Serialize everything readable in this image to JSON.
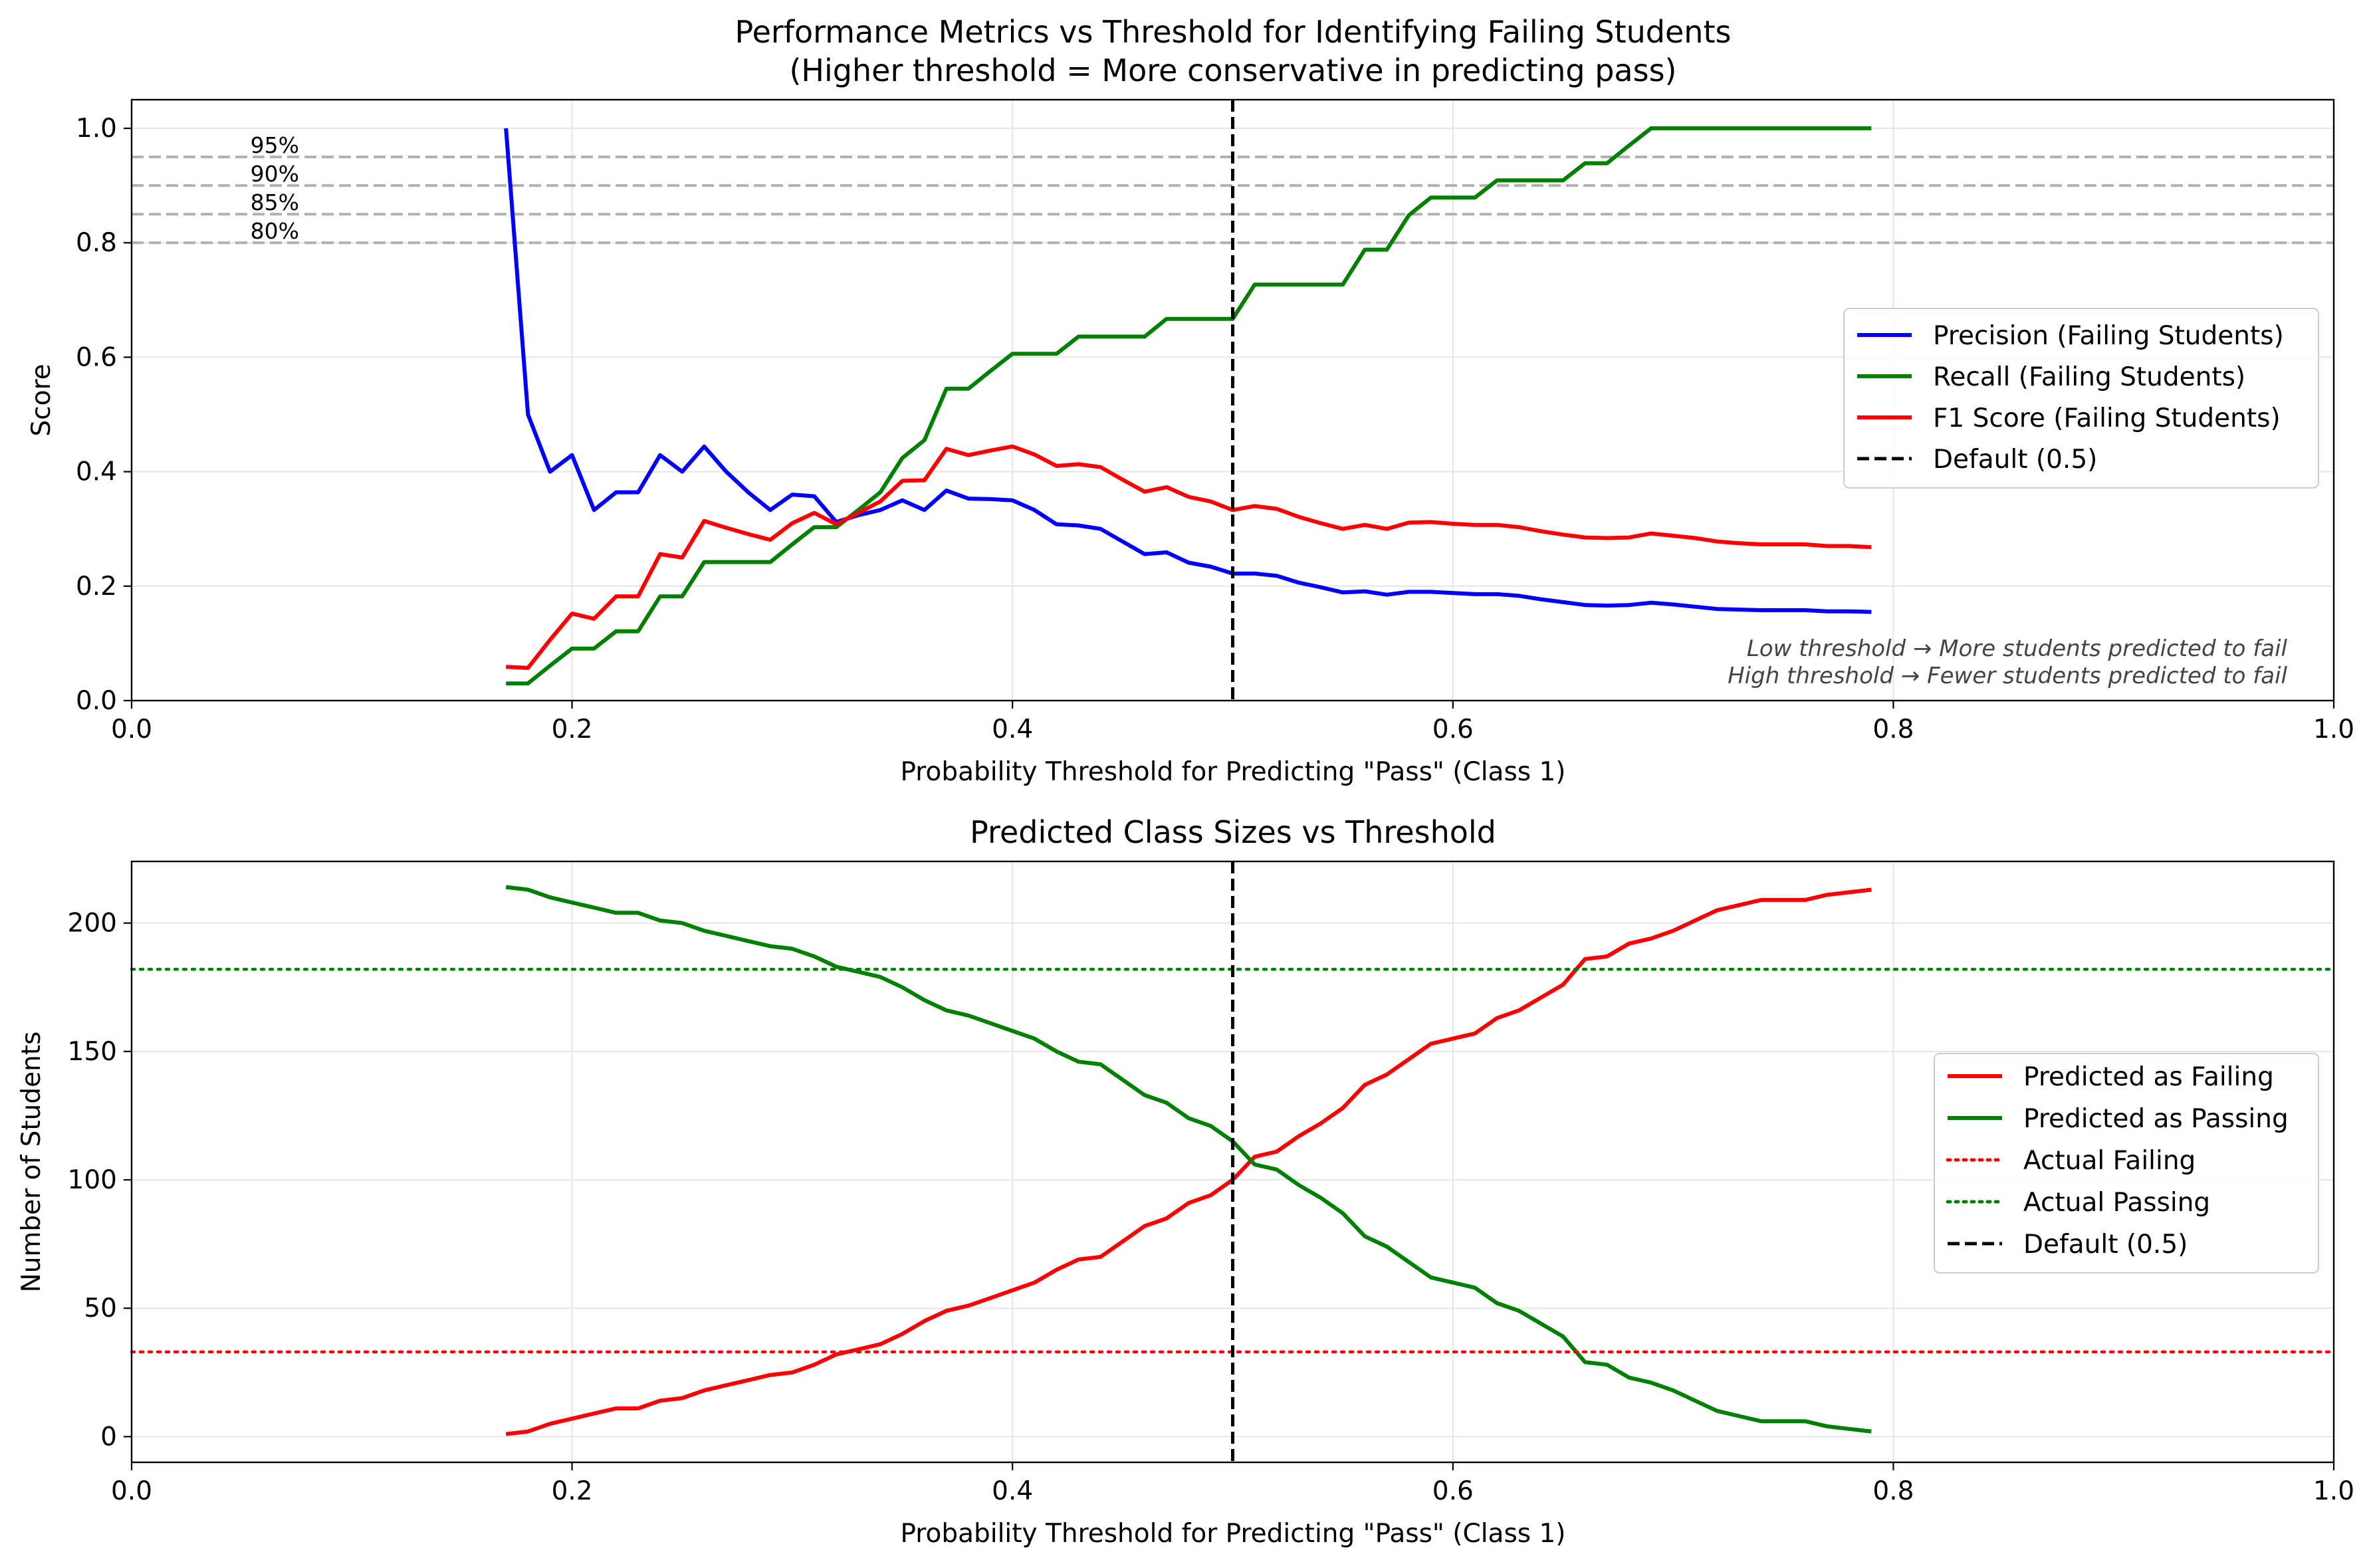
{
  "chart_data": [
    {
      "type": "line",
      "title": "Performance Metrics vs Threshold for Identifying Failing Students",
      "subtitle": "(Higher threshold = More conservative in predicting pass)",
      "xlabel": "Probability Threshold for Predicting \"Pass\" (Class 1)",
      "ylabel": "Score",
      "xlim": [
        0.0,
        1.0
      ],
      "ylim": [
        0.0,
        1.05
      ],
      "xticks": [
        0.0,
        0.2,
        0.4,
        0.6,
        0.8,
        1.0
      ],
      "xtick_labels": [
        "0.0",
        "0.2",
        "0.4",
        "0.6",
        "0.8",
        "1.0"
      ],
      "yticks": [
        0.0,
        0.2,
        0.4,
        0.6,
        0.8,
        1.0
      ],
      "ytick_labels": [
        "0.0",
        "0.2",
        "0.4",
        "0.6",
        "0.8",
        "1.0"
      ],
      "grid": true,
      "legend_position": "center-right",
      "x": [
        0.17,
        0.18,
        0.19,
        0.2,
        0.21,
        0.22,
        0.23,
        0.24,
        0.25,
        0.26,
        0.27,
        0.28,
        0.29,
        0.3,
        0.31,
        0.32,
        0.33,
        0.34,
        0.35,
        0.36,
        0.37,
        0.38,
        0.39,
        0.4,
        0.41,
        0.42,
        0.43,
        0.44,
        0.45,
        0.46,
        0.47,
        0.48,
        0.49,
        0.5,
        0.51,
        0.52,
        0.53,
        0.54,
        0.55,
        0.56,
        0.57,
        0.58,
        0.59,
        0.6,
        0.61,
        0.62,
        0.63,
        0.64,
        0.65,
        0.66,
        0.67,
        0.68,
        0.69,
        0.7,
        0.71,
        0.72,
        0.73,
        0.74,
        0.75,
        0.76,
        0.77,
        0.78,
        0.79
      ],
      "series": [
        {
          "name": "Precision (Failing Students)",
          "color": "#0000ff",
          "style": "solid",
          "values": [
            1.0,
            0.5,
            0.4,
            0.429,
            0.333,
            0.364,
            0.364,
            0.429,
            0.4,
            0.444,
            0.4,
            0.364,
            0.333,
            0.36,
            0.357,
            0.312,
            0.324,
            0.333,
            0.35,
            0.333,
            0.367,
            0.353,
            0.352,
            0.35,
            0.333,
            0.308,
            0.306,
            0.3,
            0.278,
            0.256,
            0.259,
            0.241,
            0.234,
            0.222,
            0.222,
            0.218,
            0.206,
            0.198,
            0.189,
            0.191,
            0.185,
            0.19,
            0.19,
            0.188,
            0.186,
            0.186,
            0.183,
            0.177,
            0.172,
            0.167,
            0.166,
            0.167,
            0.171,
            0.168,
            0.164,
            0.16,
            0.159,
            0.158,
            0.158,
            0.158,
            0.156,
            0.156,
            0.155
          ]
        },
        {
          "name": "Recall (Failing Students)",
          "color": "#008000",
          "style": "solid",
          "values": [
            0.03,
            0.03,
            0.061,
            0.091,
            0.091,
            0.121,
            0.121,
            0.182,
            0.182,
            0.242,
            0.242,
            0.242,
            0.242,
            0.273,
            0.303,
            0.303,
            0.333,
            0.364,
            0.424,
            0.455,
            0.545,
            0.545,
            0.576,
            0.606,
            0.606,
            0.606,
            0.636,
            0.636,
            0.636,
            0.636,
            0.667,
            0.667,
            0.667,
            0.667,
            0.727,
            0.727,
            0.727,
            0.727,
            0.727,
            0.788,
            0.788,
            0.848,
            0.879,
            0.879,
            0.879,
            0.909,
            0.909,
            0.909,
            0.909,
            0.939,
            0.939,
            0.97,
            1.0,
            1.0,
            1.0,
            1.0,
            1.0,
            1.0,
            1.0,
            1.0,
            1.0,
            1.0,
            1.0
          ]
        },
        {
          "name": "F1 Score (Failing Students)",
          "color": "#ff0000",
          "style": "solid",
          "values": [
            0.059,
            0.057,
            0.106,
            0.152,
            0.143,
            0.182,
            0.182,
            0.256,
            0.25,
            0.314,
            0.302,
            0.291,
            0.281,
            0.31,
            0.328,
            0.308,
            0.328,
            0.348,
            0.384,
            0.385,
            0.44,
            0.429,
            0.437,
            0.444,
            0.43,
            0.41,
            0.413,
            0.408,
            0.386,
            0.365,
            0.373,
            0.356,
            0.348,
            0.333,
            0.34,
            0.335,
            0.321,
            0.31,
            0.3,
            0.307,
            0.3,
            0.311,
            0.312,
            0.309,
            0.307,
            0.307,
            0.303,
            0.296,
            0.29,
            0.285,
            0.284,
            0.285,
            0.292,
            0.288,
            0.284,
            0.278,
            0.275,
            0.273,
            0.273,
            0.273,
            0.27,
            0.27,
            0.268
          ]
        },
        {
          "name": "Default (0.5)",
          "color": "#000000",
          "style": "dashed",
          "vline_x": 0.5
        }
      ],
      "reference_lines": [
        {
          "label": "95%",
          "y": 0.95,
          "color": "#b0b0b0",
          "style": "dashed"
        },
        {
          "label": "90%",
          "y": 0.9,
          "color": "#b0b0b0",
          "style": "dashed"
        },
        {
          "label": "85%",
          "y": 0.85,
          "color": "#b0b0b0",
          "style": "dashed"
        },
        {
          "label": "80%",
          "y": 0.8,
          "color": "#b0b0b0",
          "style": "dashed"
        }
      ],
      "annotations": [
        "Low threshold → More students predicted to fail",
        "High threshold → Fewer students predicted to fail"
      ]
    },
    {
      "type": "line",
      "title": "Predicted Class Sizes vs Threshold",
      "xlabel": "Probability Threshold for Predicting \"Pass\" (Class 1)",
      "ylabel": "Number of Students",
      "xlim": [
        0.0,
        1.0
      ],
      "ylim": [
        -10,
        224
      ],
      "xticks": [
        0.0,
        0.2,
        0.4,
        0.6,
        0.8,
        1.0
      ],
      "xtick_labels": [
        "0.0",
        "0.2",
        "0.4",
        "0.6",
        "0.8",
        "1.0"
      ],
      "yticks": [
        0,
        50,
        100,
        150,
        200
      ],
      "ytick_labels": [
        "0",
        "50",
        "100",
        "150",
        "200"
      ],
      "grid": true,
      "legend_position": "center-right",
      "x": [
        0.17,
        0.18,
        0.19,
        0.2,
        0.21,
        0.22,
        0.23,
        0.24,
        0.25,
        0.26,
        0.27,
        0.28,
        0.29,
        0.3,
        0.31,
        0.32,
        0.33,
        0.34,
        0.35,
        0.36,
        0.37,
        0.38,
        0.39,
        0.4,
        0.41,
        0.42,
        0.43,
        0.44,
        0.45,
        0.46,
        0.47,
        0.48,
        0.49,
        0.5,
        0.51,
        0.52,
        0.53,
        0.54,
        0.55,
        0.56,
        0.57,
        0.58,
        0.59,
        0.6,
        0.61,
        0.62,
        0.63,
        0.64,
        0.65,
        0.66,
        0.67,
        0.68,
        0.69,
        0.7,
        0.71,
        0.72,
        0.73,
        0.74,
        0.75,
        0.76,
        0.77,
        0.78,
        0.79
      ],
      "series": [
        {
          "name": "Predicted as Failing",
          "color": "#ff0000",
          "style": "solid",
          "values": [
            1,
            2,
            5,
            7,
            9,
            11,
            11,
            14,
            15,
            18,
            20,
            22,
            24,
            25,
            28,
            32,
            34,
            36,
            40,
            45,
            49,
            51,
            54,
            57,
            60,
            65,
            69,
            70,
            76,
            82,
            85,
            91,
            94,
            100,
            109,
            111,
            117,
            122,
            128,
            137,
            141,
            147,
            153,
            155,
            157,
            163,
            166,
            171,
            176,
            186,
            187,
            192,
            194,
            197,
            201,
            205,
            207,
            209,
            209,
            209,
            211,
            212,
            213
          ]
        },
        {
          "name": "Predicted as Passing",
          "color": "#008000",
          "style": "solid",
          "values": [
            214,
            213,
            210,
            208,
            206,
            204,
            204,
            201,
            200,
            197,
            195,
            193,
            191,
            190,
            187,
            183,
            181,
            179,
            175,
            170,
            166,
            164,
            161,
            158,
            155,
            150,
            146,
            145,
            139,
            133,
            130,
            124,
            121,
            115,
            106,
            104,
            98,
            93,
            87,
            78,
            74,
            68,
            62,
            60,
            58,
            52,
            49,
            44,
            39,
            29,
            28,
            23,
            21,
            18,
            14,
            10,
            8,
            6,
            6,
            6,
            4,
            3,
            2
          ]
        },
        {
          "name": "Actual Failing",
          "color": "#ff0000",
          "style": "dotted",
          "hline_y": 33
        },
        {
          "name": "Actual Passing",
          "color": "#008000",
          "style": "dotted",
          "hline_y": 182
        },
        {
          "name": "Default (0.5)",
          "color": "#000000",
          "style": "dashed",
          "vline_x": 0.5
        }
      ]
    }
  ]
}
